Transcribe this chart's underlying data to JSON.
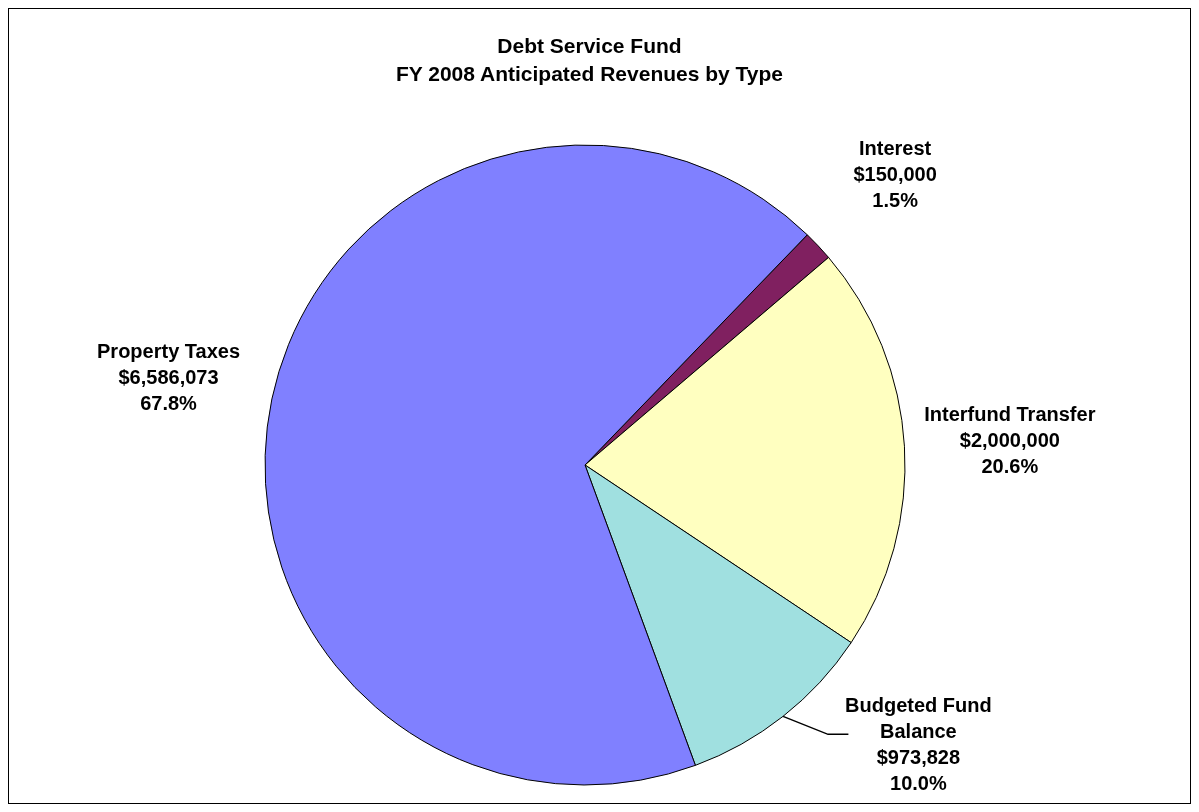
{
  "chart_data": {
    "type": "pie",
    "title": "Debt Service Fund\nFY 2008 Anticipated Revenues by Type",
    "categories": [
      "Interest",
      "Interfund Transfer",
      "Budgeted Fund Balance",
      "Property Taxes"
    ],
    "values": [
      150000,
      2000000,
      973828,
      6586073
    ],
    "colors": [
      "#802060",
      "#ffffc0",
      "#a0e0e0",
      "#8080ff"
    ],
    "value_labels": [
      "$150,000\n1.5%",
      "$2,000,000\n20.6%",
      "$973,828\n10.0%",
      "$6,586,073\n67.8%"
    ]
  }
}
